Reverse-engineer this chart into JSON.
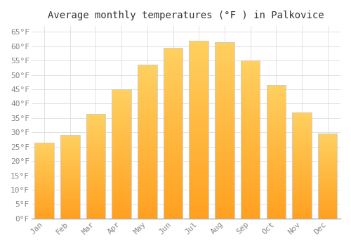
{
  "title": "Average monthly temperatures (°F ) in Palkovice",
  "months": [
    "Jan",
    "Feb",
    "Mar",
    "Apr",
    "May",
    "Jun",
    "Jul",
    "Aug",
    "Sep",
    "Oct",
    "Nov",
    "Dec"
  ],
  "values": [
    26.5,
    29.0,
    36.5,
    45.0,
    53.5,
    59.5,
    62.0,
    61.5,
    55.0,
    46.5,
    37.0,
    29.5
  ],
  "bar_color_bottom": "#FFA020",
  "bar_color_top": "#FFD060",
  "bar_edge_color": "#CCCCCC",
  "ylim": [
    0,
    67
  ],
  "yticks": [
    0,
    5,
    10,
    15,
    20,
    25,
    30,
    35,
    40,
    45,
    50,
    55,
    60,
    65
  ],
  "ytick_labels": [
    "0°F",
    "5°F",
    "10°F",
    "15°F",
    "20°F",
    "25°F",
    "30°F",
    "35°F",
    "40°F",
    "45°F",
    "50°F",
    "55°F",
    "60°F",
    "65°F"
  ],
  "background_color": "#ffffff",
  "grid_color": "#dddddd",
  "title_fontsize": 10,
  "tick_fontsize": 8,
  "font_family": "monospace"
}
